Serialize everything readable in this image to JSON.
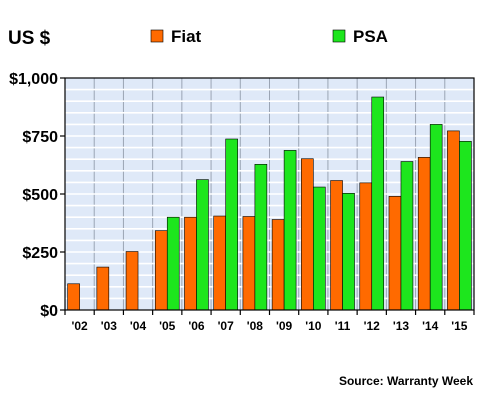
{
  "chart_data": {
    "type": "bar",
    "ylabel": "US $",
    "ylim": [
      0,
      1000
    ],
    "y_ticks": [
      0,
      250,
      500,
      750,
      1000
    ],
    "y_tick_labels": [
      "$0",
      "$250",
      "$500",
      "$750",
      "$1,000"
    ],
    "categories": [
      "'02",
      "'03",
      "'04",
      "'05",
      "'06",
      "'07",
      "'08",
      "'09",
      "'10",
      "'11",
      "'12",
      "'13",
      "'14",
      "'15"
    ],
    "series": [
      {
        "name": "Fiat",
        "color": "#ff6a00",
        "values": [
          113,
          185,
          252,
          342,
          400,
          405,
          403,
          390,
          652,
          558,
          548,
          490,
          658,
          772
        ]
      },
      {
        "name": "PSA",
        "color": "#1de61d",
        "values": [
          null,
          null,
          null,
          400,
          562,
          737,
          628,
          688,
          530,
          503,
          918,
          640,
          800,
          727
        ]
      }
    ],
    "grid": true,
    "legend_position": "top",
    "source": "Source: Warranty Week"
  }
}
